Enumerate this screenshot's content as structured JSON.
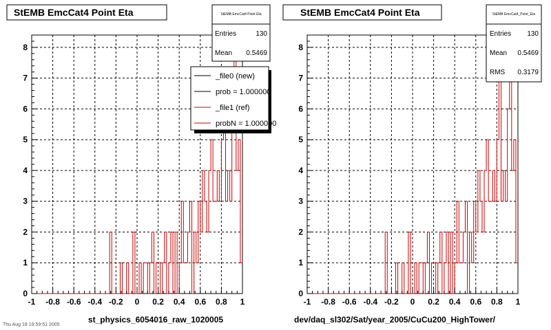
{
  "chart_data": [
    {
      "type": "histogram",
      "title": "StEMB EmcCat4 Point Eta",
      "xlabel": "st_physics_6054016_raw_1020005",
      "ylabel": "",
      "xlim": [
        -1,
        1
      ],
      "ylim": [
        0,
        8.4
      ],
      "x_ticks": [
        "-1",
        "-0.8",
        "-0.6",
        "-0.4",
        "-0.2",
        "0",
        "0.2",
        "0.4",
        "0.6",
        "0.8",
        "1"
      ],
      "y_ticks": [
        "0",
        "1",
        "2",
        "3",
        "4",
        "5",
        "6",
        "7",
        "8"
      ],
      "grid": true,
      "bin_range": [
        -1,
        1
      ],
      "counts": [
        0,
        0,
        0,
        0,
        0,
        0,
        0,
        0,
        0,
        0,
        0,
        0,
        0,
        0,
        0,
        0,
        0,
        0,
        0,
        0,
        0,
        0,
        0,
        0,
        0,
        0,
        0,
        0,
        0,
        0,
        0,
        0,
        0,
        0,
        0,
        0,
        0,
        2,
        0,
        0,
        0,
        0,
        1,
        0,
        0,
        1,
        0,
        0,
        2,
        0,
        0,
        1,
        0,
        1,
        1,
        0,
        1,
        2,
        0,
        1,
        1,
        0,
        1,
        2,
        0,
        1,
        2,
        0,
        2,
        0,
        1,
        3,
        1,
        1,
        2,
        3,
        0,
        2,
        1,
        3,
        2,
        4,
        3,
        2,
        4,
        5,
        3,
        3,
        4,
        3,
        5,
        7,
        3,
        4,
        3,
        6,
        8,
        4,
        5,
        1
      ],
      "stats": {
        "header": "StEMB EmcCat4 Point Eta",
        "entries_label": "Entries",
        "entries": "130",
        "mean_label": "Mean",
        "mean": "0.5469"
      },
      "legend": [
        {
          "name": "_file0 (new)",
          "color": "#000000"
        },
        {
          "name": "prob = 1.000000",
          "color": "#000000"
        },
        {
          "name": "_file1 (ref)",
          "color": "#cc0000"
        },
        {
          "name": "probN = 1.000000",
          "color": "#cc0000"
        }
      ],
      "legend_position": "top-right"
    },
    {
      "type": "histogram",
      "title": "StEMB EmcCat4 Point Eta",
      "xlabel": "dev/daq_sl302/Sat/year_2005/CuCu200_HighTower/",
      "ylabel": "",
      "xlim": [
        -1,
        1
      ],
      "ylim": [
        0,
        8.4
      ],
      "x_ticks": [
        "-1",
        "-0.8",
        "-0.6",
        "-0.4",
        "-0.2",
        "0",
        "0.2",
        "0.4",
        "0.6",
        "0.8",
        "1"
      ],
      "y_ticks": [
        "0",
        "1",
        "2",
        "3",
        "4",
        "5",
        "6",
        "7",
        "8"
      ],
      "grid": true,
      "bin_range": [
        -1,
        1
      ],
      "counts": [
        0,
        0,
        0,
        0,
        0,
        0,
        0,
        0,
        0,
        0,
        0,
        0,
        0,
        0,
        0,
        0,
        0,
        0,
        0,
        0,
        0,
        0,
        0,
        0,
        0,
        0,
        0,
        0,
        0,
        0,
        0,
        0,
        0,
        0,
        0,
        0,
        0,
        2,
        0,
        0,
        0,
        0,
        1,
        0,
        0,
        1,
        0,
        0,
        2,
        0,
        0,
        1,
        0,
        1,
        1,
        0,
        1,
        2,
        0,
        1,
        1,
        0,
        1,
        2,
        0,
        1,
        2,
        0,
        2,
        0,
        1,
        3,
        1,
        1,
        2,
        3,
        0,
        2,
        1,
        3,
        2,
        4,
        3,
        2,
        4,
        5,
        3,
        3,
        4,
        3,
        5,
        7,
        3,
        4,
        3,
        6,
        8,
        4,
        5,
        1
      ],
      "stats": {
        "header": "StEMB EmcCat4_Point_Eta",
        "entries_label": "Entries",
        "entries": "130",
        "mean_label": "Mean",
        "mean": "0.5469",
        "rms_label": "RMS",
        "rms": "0.3179"
      }
    }
  ],
  "footer": "Thu Aug 18 19:59:51 2005",
  "colors": {
    "hist": "#cc0000",
    "grid": "#000000",
    "background": "#ffffff",
    "shadow": "#000000"
  }
}
